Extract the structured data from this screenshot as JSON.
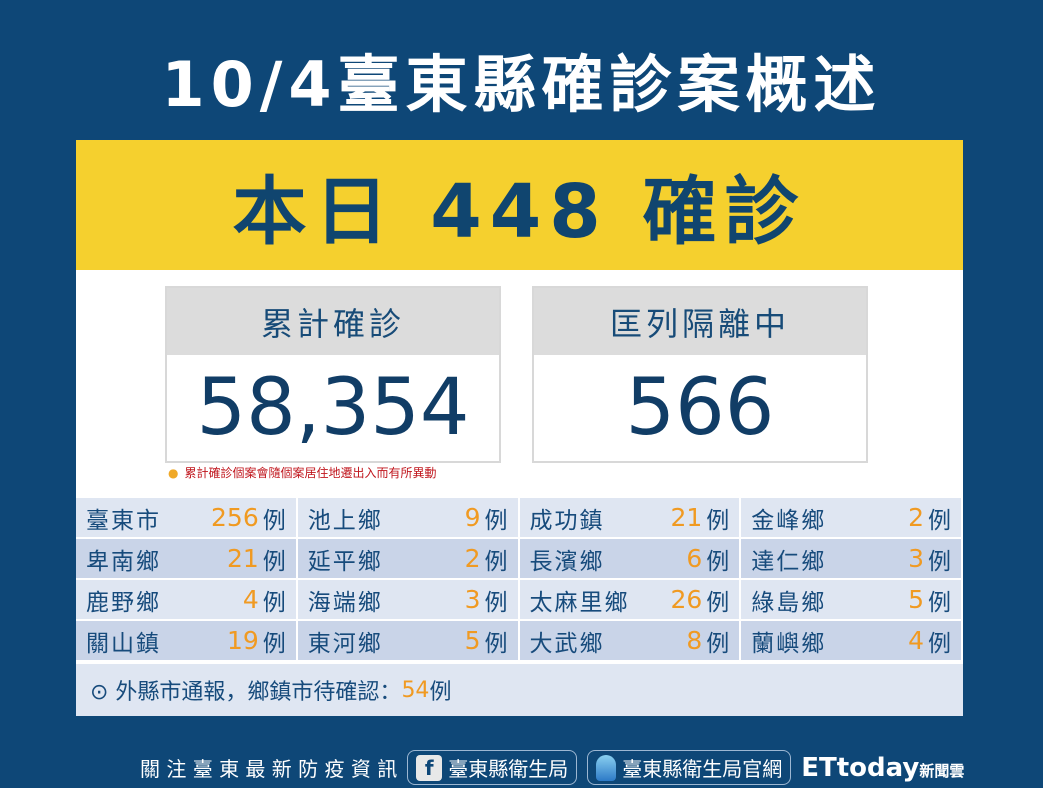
{
  "title": "10/4臺東縣確診案概述",
  "today": "本日 448 確診",
  "cumulative": {
    "label": "累計確診",
    "value": "58,354"
  },
  "isolation": {
    "label": "匡列隔離中",
    "value": "566"
  },
  "note": "累計確診個案會隨個案居住地遷出入而有所異動",
  "unit": "例",
  "rows": [
    [
      {
        "name": "臺東市",
        "count": "256"
      },
      {
        "name": "池上鄉",
        "count": "9"
      },
      {
        "name": "成功鎮",
        "count": "21"
      },
      {
        "name": "金峰鄉",
        "count": "2"
      }
    ],
    [
      {
        "name": "卑南鄉",
        "count": "21"
      },
      {
        "name": "延平鄉",
        "count": "2"
      },
      {
        "name": "長濱鄉",
        "count": "6"
      },
      {
        "name": "達仁鄉",
        "count": "3"
      }
    ],
    [
      {
        "name": "鹿野鄉",
        "count": "4"
      },
      {
        "name": "海端鄉",
        "count": "3"
      },
      {
        "name": "太麻里鄉",
        "count": "26"
      },
      {
        "name": "綠島鄉",
        "count": "5"
      }
    ],
    [
      {
        "name": "關山鎮",
        "count": "19"
      },
      {
        "name": "東河鄉",
        "count": "5"
      },
      {
        "name": "大武鄉",
        "count": "8"
      },
      {
        "name": "蘭嶼鄉",
        "count": "4"
      }
    ]
  ],
  "footer": {
    "prefix": "⊙ 外縣市通報，鄉鎮市待確認：",
    "count": "54",
    "unit": "例"
  },
  "bottom": {
    "follow": "關 注 臺 東 最 新 防 疫 資 訊",
    "facebook": "臺東縣衛生局",
    "website": "臺東縣衛生局官網",
    "brand": "ETtoday",
    "brand_sub": "新聞雲"
  }
}
